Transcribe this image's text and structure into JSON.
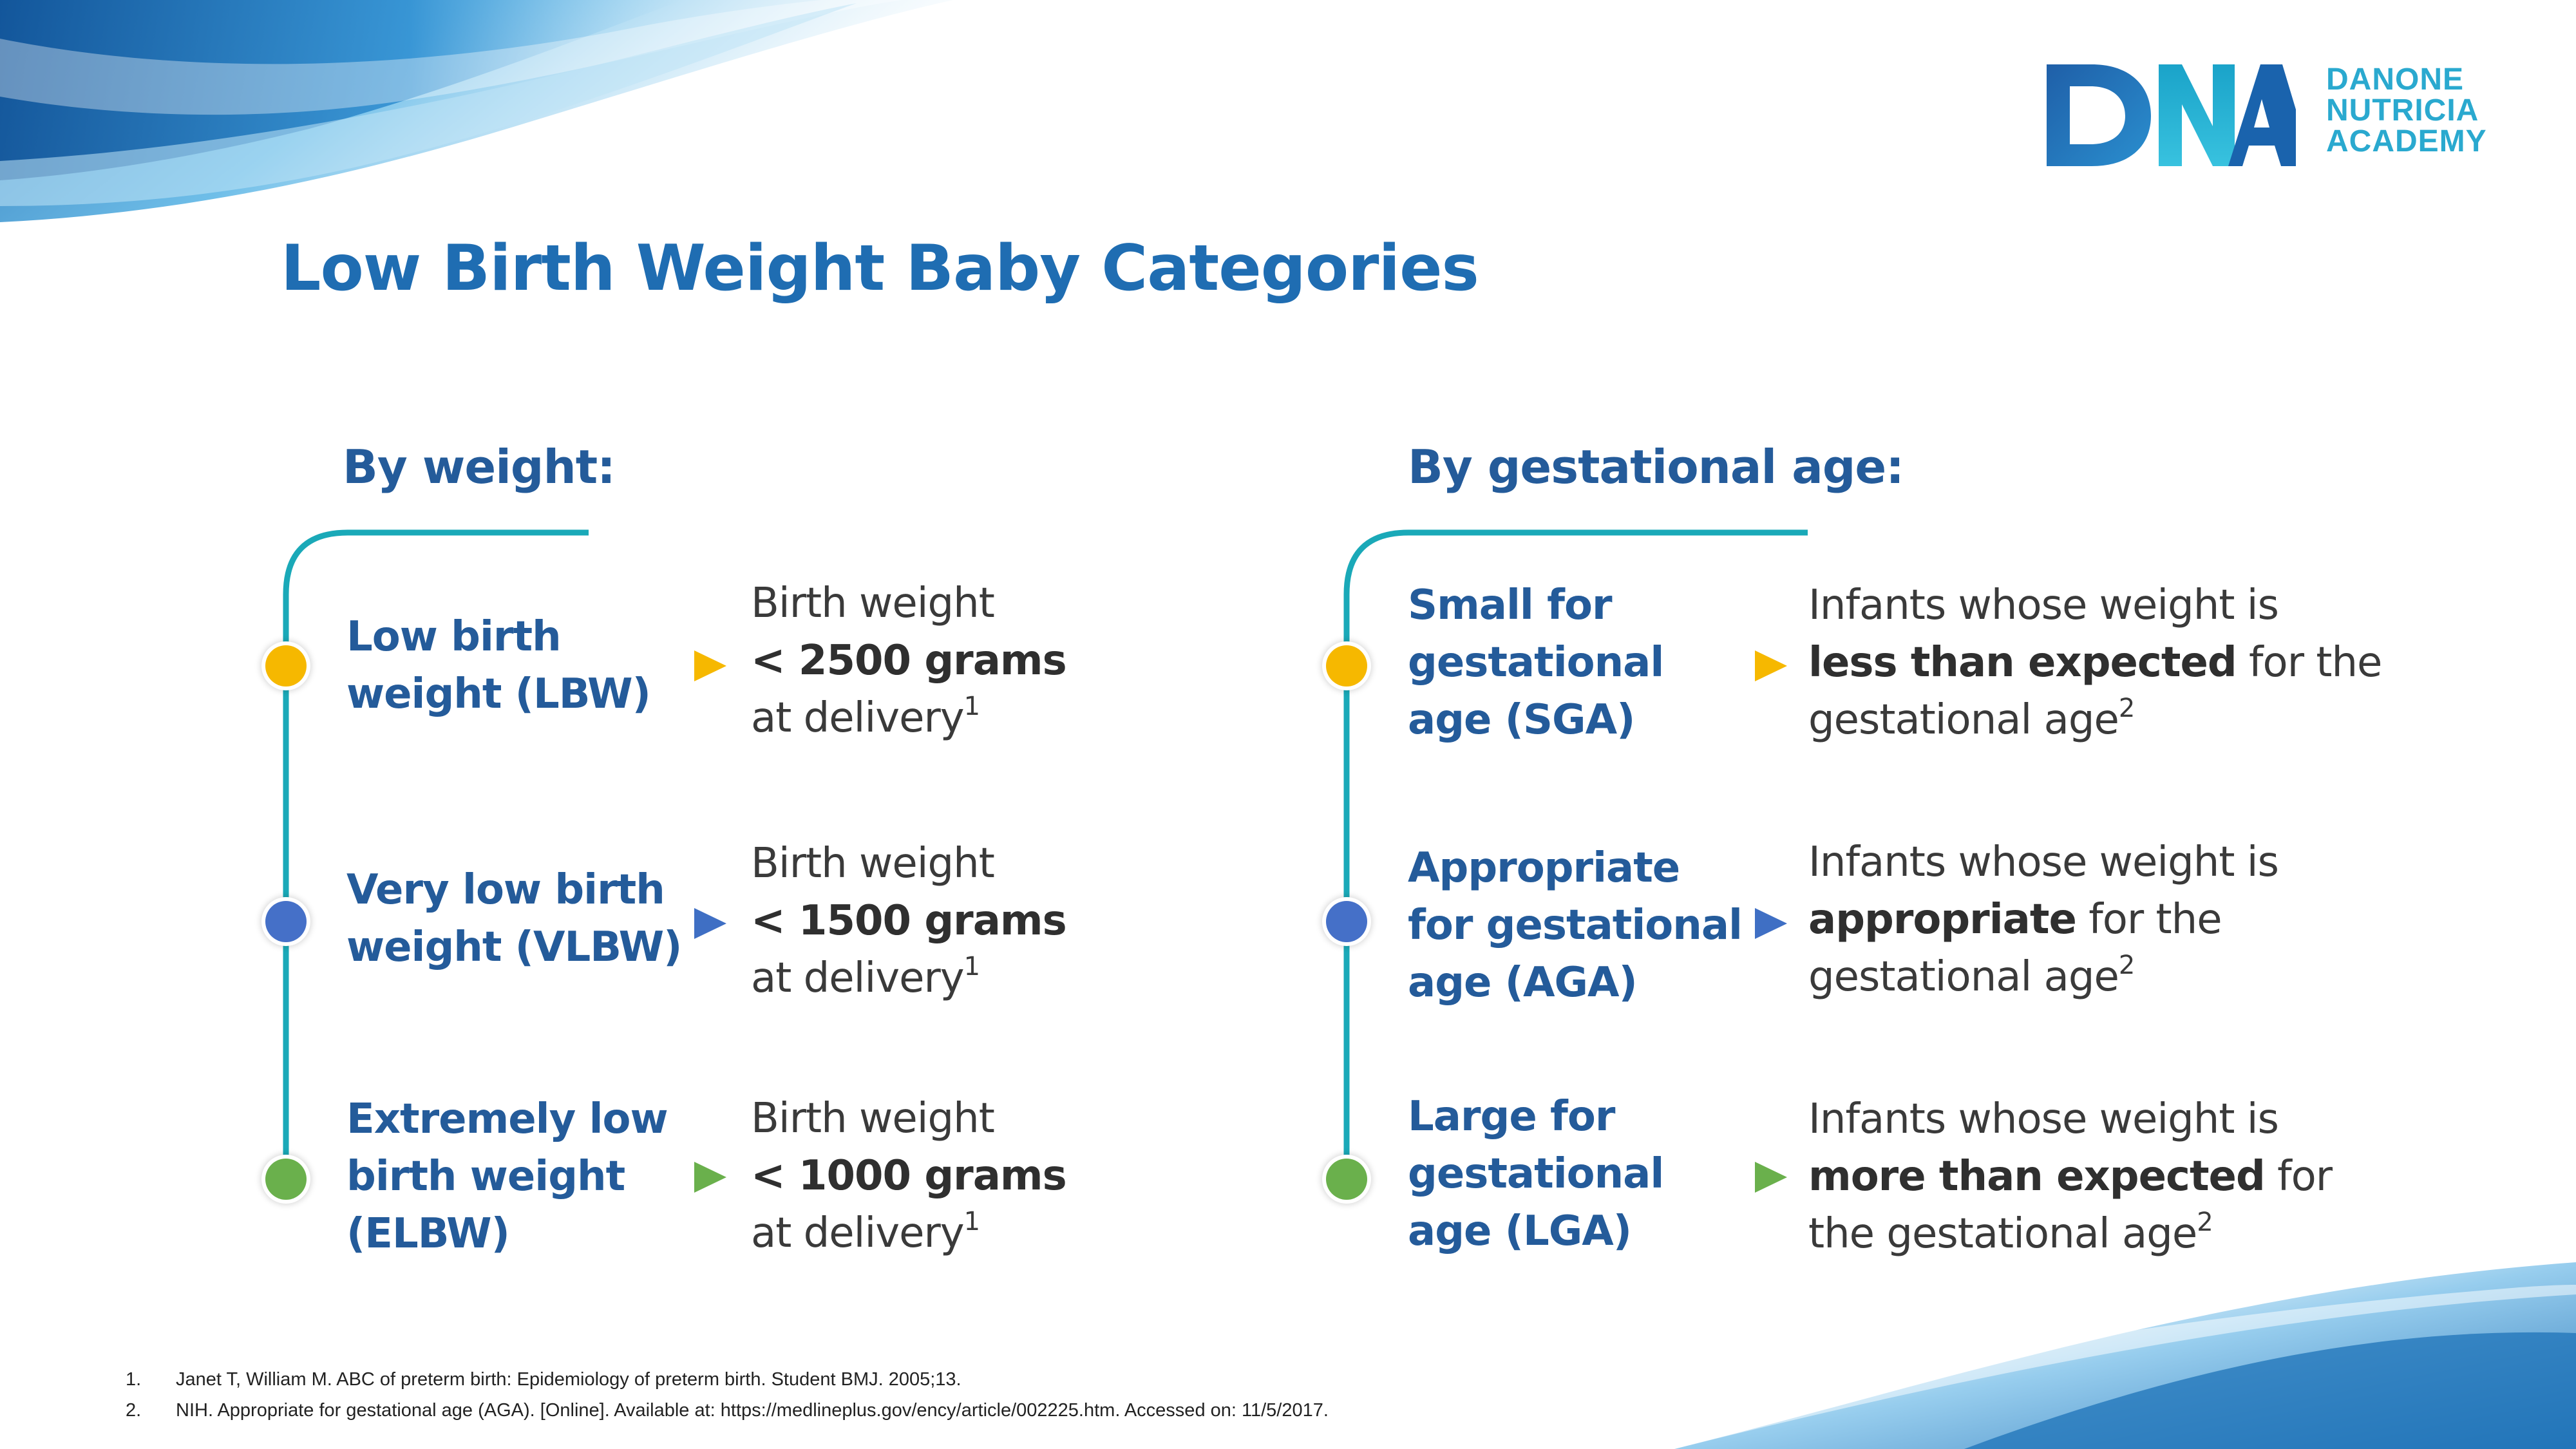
{
  "logo": {
    "mark": "DNA",
    "line1": "DANONE",
    "line2": "NUTRICIA",
    "line3": "ACADEMY"
  },
  "title": "Low Birth Weight Baby Categories",
  "weight": {
    "heading": "By weight:",
    "items": [
      {
        "label_line1": "Low birth",
        "label_line2": "weight (LBW)",
        "label_line3": "",
        "desc_line1": "Birth weight",
        "desc_bold": "< 2500 grams",
        "desc_line3": "at delivery",
        "sup": "1",
        "color": "#f6b800"
      },
      {
        "label_line1": "Very low birth",
        "label_line2": "weight (VLBW)",
        "label_line3": "",
        "desc_line1": "Birth weight",
        "desc_bold": "< 1500 grams",
        "desc_line3": "at delivery",
        "sup": "1",
        "color": "#4570c8"
      },
      {
        "label_line1": "Extremely low",
        "label_line2": "birth weight",
        "label_line3": "(ELBW)",
        "desc_line1": "Birth weight",
        "desc_bold": "< 1000 grams",
        "desc_line3": "at delivery",
        "sup": "1",
        "color": "#6ab04c"
      }
    ]
  },
  "gestational": {
    "heading": "By gestational age:",
    "items": [
      {
        "label_line1": "Small for",
        "label_line2": "gestational",
        "label_line3": "age (SGA)",
        "desc_line1": "Infants whose weight is",
        "desc_bold": "less than expected",
        "desc_after_bold": " for the",
        "desc_line3": "gestational age",
        "sup": "2",
        "color": "#f6b800"
      },
      {
        "label_line1": "Appropriate",
        "label_line2": "for gestational",
        "label_line3": "age (AGA)",
        "desc_line1": "Infants whose weight is",
        "desc_bold": "appropriate",
        "desc_after_bold": " for the",
        "desc_line3": "gestational age",
        "sup": "2",
        "color": "#4570c8"
      },
      {
        "label_line1": "Large for",
        "label_line2": "gestational",
        "label_line3": "age (LGA)",
        "desc_line1": "Infants whose weight is",
        "desc_bold": "more than expected",
        "desc_after_bold": " for",
        "desc_line3": "the gestational age",
        "sup": "2",
        "color": "#6ab04c"
      }
    ]
  },
  "references": [
    {
      "num": "1.",
      "text": "Janet T, William M. ABC of preterm birth: Epidemiology of preterm birth. Student BMJ. 2005;13."
    },
    {
      "num": "2.",
      "text": "NIH. Appropriate for gestational age (AGA).  [Online]. Available at: https://medlineplus.gov/ency/article/002225.htm. Accessed on: 11/5/2017."
    }
  ],
  "colors": {
    "title": "#1f6db2",
    "heading": "#245b9a",
    "teal_line": "#1aa9b8",
    "yellow": "#f6b800",
    "blue": "#4570c8",
    "green": "#6ab04c"
  }
}
